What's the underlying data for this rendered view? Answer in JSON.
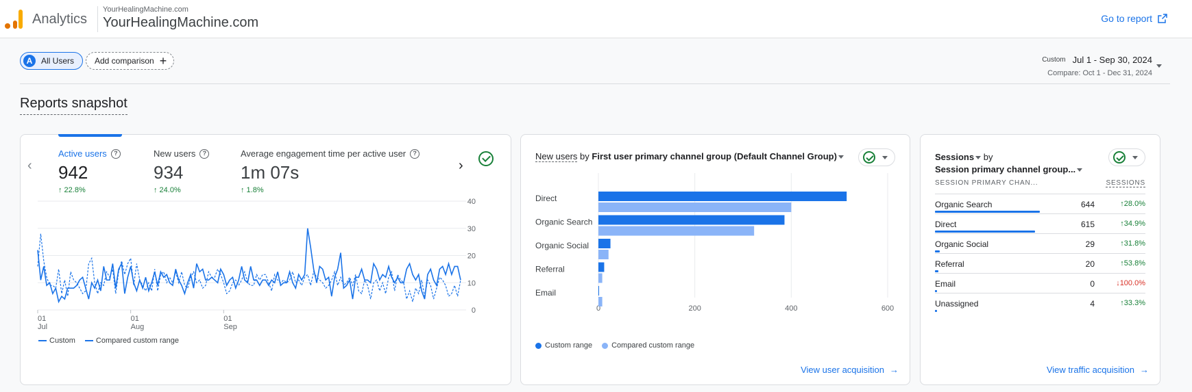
{
  "header": {
    "app_name": "Analytics",
    "property_small": "YourHealingMachine.com",
    "property_name": "YourHealingMachine.com",
    "go_to_report": "Go to report"
  },
  "comparison": {
    "all_users_avatar": "A",
    "all_users_label": "All Users",
    "add_comparison_label": "Add comparison"
  },
  "date_range": {
    "label": "Custom",
    "range": "Jul 1 - Sep 30, 2024",
    "compare": "Compare: Oct 1 - Dec 31, 2024"
  },
  "snapshot_title": "Reports snapshot",
  "overview_card": {
    "metrics": [
      {
        "label": "Active users",
        "value": "942",
        "delta": "↑ 22.8%"
      },
      {
        "label": "New users",
        "value": "934",
        "delta": "↑ 24.0%"
      },
      {
        "label": "Average engagement time per active user",
        "value": "1m 07s",
        "delta": "↑ 1.8%"
      }
    ],
    "legend": {
      "custom": "Custom",
      "compared": "Compared custom range"
    },
    "chart_data": {
      "type": "line",
      "x_tick_labels": [
        [
          "01",
          "Jul"
        ],
        [
          "01",
          "Aug"
        ],
        [
          "01",
          "Sep"
        ]
      ],
      "y_ticks": [
        0,
        10,
        20,
        30,
        40
      ],
      "ylim": [
        0,
        40
      ],
      "series": [
        {
          "name": "Custom",
          "style": "solid",
          "color": "#1a73e8",
          "values": [
            22,
            11,
            16,
            9,
            10,
            6,
            8,
            3,
            5,
            4,
            8,
            8,
            8,
            9,
            11,
            12,
            8,
            4,
            10,
            8,
            11,
            7,
            16,
            11,
            11,
            17,
            8,
            15,
            17,
            6,
            12,
            16,
            10,
            7,
            11,
            8,
            12,
            7,
            10,
            14,
            9,
            14,
            12,
            13,
            10,
            9,
            15,
            11,
            9,
            6,
            10,
            13,
            8,
            17,
            14,
            15,
            11,
            11,
            12,
            11,
            10,
            15,
            13,
            9,
            11,
            12,
            8,
            11,
            16,
            11,
            10,
            16,
            11,
            11,
            9,
            11,
            11,
            9,
            11,
            10,
            14,
            9,
            10,
            10,
            14,
            10,
            8,
            13,
            11,
            13,
            30,
            23,
            15,
            10,
            16,
            15,
            11,
            12,
            5,
            12,
            15,
            21,
            8,
            9,
            11,
            4,
            12,
            12,
            15,
            11,
            11,
            10,
            17,
            15,
            11,
            13,
            12,
            16,
            12,
            10,
            12,
            10,
            10,
            15,
            17,
            13,
            11,
            13,
            7,
            4,
            13,
            15,
            11,
            9,
            15,
            16,
            13,
            17,
            13,
            16,
            16,
            11
          ]
        },
        {
          "name": "Compared custom range",
          "style": "dashed",
          "color": "#1a73e8",
          "values": [
            16,
            28,
            18,
            12,
            9,
            9,
            8,
            15,
            6,
            11,
            5,
            14,
            11,
            10,
            8,
            6,
            7,
            17,
            19,
            10,
            6,
            10,
            9,
            14,
            12,
            15,
            6,
            14,
            18,
            13,
            17,
            19,
            9,
            17,
            11,
            9,
            7,
            10,
            7,
            15,
            7,
            13,
            14,
            10,
            12,
            10,
            14,
            10,
            14,
            9,
            8,
            12,
            14,
            10,
            11,
            8,
            9,
            14,
            12,
            12,
            15,
            13,
            10,
            6,
            7,
            10,
            11,
            9,
            11,
            14,
            10,
            9,
            9,
            13,
            11,
            13,
            13,
            10,
            7,
            13,
            11,
            10,
            11,
            10,
            11,
            14,
            10,
            11,
            9,
            12,
            13,
            9,
            14,
            12,
            11,
            10,
            8,
            9,
            11,
            14,
            9,
            12,
            9,
            10,
            12,
            9,
            13,
            7,
            6,
            11,
            9,
            4,
            10,
            11,
            7,
            10,
            6,
            12,
            14,
            7,
            13,
            11,
            10,
            4,
            7,
            3,
            8,
            6,
            11,
            5,
            11,
            9,
            4,
            8,
            12,
            11,
            9,
            5,
            6,
            9,
            5,
            11
          ]
        }
      ]
    }
  },
  "acquisition_card": {
    "title_metric": "New users",
    "title_by": "by",
    "title_dimension": "First user primary channel group (Default Channel Group)",
    "legend": {
      "custom": "Custom range",
      "compared": "Compared custom range"
    },
    "link": "View user acquisition",
    "chart_data": {
      "type": "bar",
      "orientation": "horizontal",
      "categories": [
        "Direct",
        "Organic Search",
        "Organic Social",
        "Referral",
        "Email"
      ],
      "series": [
        {
          "name": "Custom range",
          "color": "#1a73e8",
          "values": [
            515,
            386,
            25,
            12,
            1
          ]
        },
        {
          "name": "Compared custom range",
          "color": "#8ab4f8",
          "values": [
            400,
            323,
            21,
            8,
            8
          ]
        }
      ],
      "x_ticks": [
        0,
        200,
        400,
        600
      ],
      "xlim": [
        0,
        600
      ]
    }
  },
  "sessions_card": {
    "title_metric": "Sessions",
    "title_by": "by",
    "title_dimension": "Session primary channel group...",
    "col_dimension": "SESSION PRIMARY CHAN...",
    "col_metric": "SESSIONS",
    "link": "View traffic acquisition",
    "rows": [
      {
        "name": "Organic Search",
        "value": 644,
        "value_text": "644",
        "delta": "↑28.0%",
        "dir": "up"
      },
      {
        "name": "Direct",
        "value": 615,
        "value_text": "615",
        "delta": "↑34.9%",
        "dir": "up"
      },
      {
        "name": "Organic Social",
        "value": 29,
        "value_text": "29",
        "delta": "↑31.8%",
        "dir": "up"
      },
      {
        "name": "Referral",
        "value": 20,
        "value_text": "20",
        "delta": "↑53.8%",
        "dir": "up"
      },
      {
        "name": "Email",
        "value": 0,
        "value_text": "0",
        "delta": "↓100.0%",
        "dir": "down"
      },
      {
        "name": "Unassigned",
        "value": 4,
        "value_text": "4",
        "delta": "↑33.3%",
        "dir": "up"
      }
    ]
  },
  "colors": {
    "accent": "#1a73e8",
    "accent_light": "#8ab4f8",
    "positive": "#188038",
    "negative": "#d93025"
  }
}
